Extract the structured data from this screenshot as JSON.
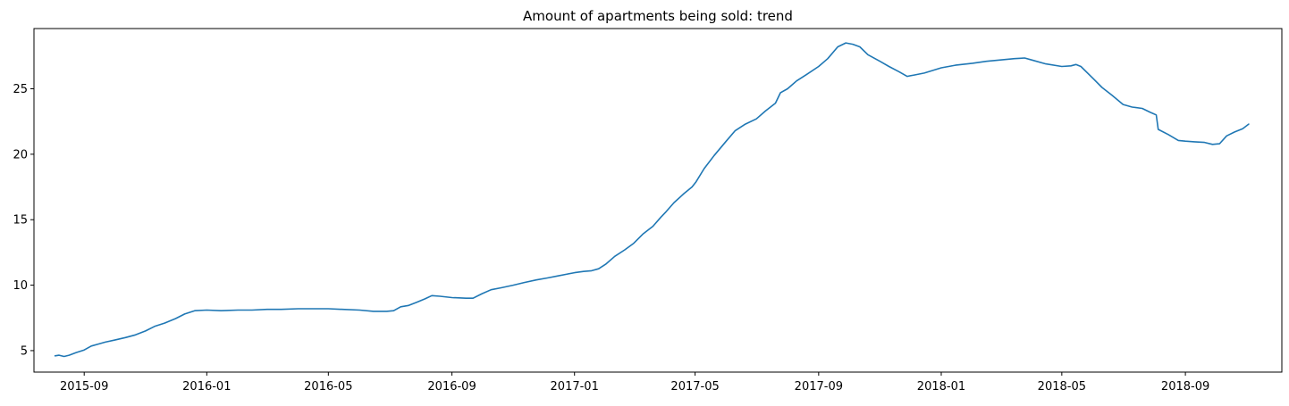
{
  "chart_data": {
    "type": "line",
    "title": "Amount of apartments being sold: trend",
    "xlabel": "",
    "ylabel": "",
    "grid": false,
    "legend": "none",
    "line_color": "#1f77b4",
    "xlim": [
      "2015-07-13",
      "2018-12-06"
    ],
    "ylim": [
      3.36,
      29.6
    ],
    "x_ticks": [
      "2015-09-01",
      "2016-01-01",
      "2016-05-01",
      "2016-09-01",
      "2017-01-01",
      "2017-05-01",
      "2017-09-01",
      "2018-01-01",
      "2018-05-01",
      "2018-09-01"
    ],
    "x_tick_labels": [
      "2015-09",
      "2016-01",
      "2016-05",
      "2016-09",
      "2017-01",
      "2017-05",
      "2017-09",
      "2018-01",
      "2018-05",
      "2018-09"
    ],
    "y_ticks": [
      5,
      10,
      15,
      20,
      25
    ],
    "y_tick_labels": [
      "5",
      "10",
      "15",
      "20",
      "25"
    ],
    "series": [
      {
        "x": [
          "2015-08-03",
          "2015-08-07",
          "2015-08-12",
          "2015-08-17",
          "2015-08-24",
          "2015-09-01",
          "2015-09-08",
          "2015-09-15",
          "2015-09-22",
          "2015-10-01",
          "2015-10-12",
          "2015-10-22",
          "2015-11-01",
          "2015-11-10",
          "2015-11-20",
          "2015-12-01",
          "2015-12-10",
          "2015-12-20",
          "2016-01-01",
          "2016-01-15",
          "2016-02-01",
          "2016-02-15",
          "2016-03-01",
          "2016-03-15",
          "2016-04-01",
          "2016-04-15",
          "2016-05-01",
          "2016-05-15",
          "2016-06-01",
          "2016-06-15",
          "2016-06-28",
          "2016-07-05",
          "2016-07-12",
          "2016-07-20",
          "2016-07-28",
          "2016-08-05",
          "2016-08-12",
          "2016-08-20",
          "2016-09-01",
          "2016-09-15",
          "2016-09-22",
          "2016-10-01",
          "2016-10-10",
          "2016-10-20",
          "2016-11-01",
          "2016-11-12",
          "2016-11-24",
          "2016-12-05",
          "2016-12-15",
          "2016-12-25",
          "2017-01-01",
          "2017-01-10",
          "2017-01-18",
          "2017-01-25",
          "2017-02-01",
          "2017-02-10",
          "2017-02-20",
          "2017-03-01",
          "2017-03-10",
          "2017-03-20",
          "2017-03-28",
          "2017-04-02",
          "2017-04-10",
          "2017-04-20",
          "2017-04-28",
          "2017-05-02",
          "2017-05-10",
          "2017-05-20",
          "2017-06-01",
          "2017-06-10",
          "2017-06-20",
          "2017-07-01",
          "2017-07-10",
          "2017-07-20",
          "2017-07-25",
          "2017-08-01",
          "2017-08-10",
          "2017-08-20",
          "2017-09-01",
          "2017-09-10",
          "2017-09-20",
          "2017-09-28",
          "2017-10-05",
          "2017-10-12",
          "2017-10-20",
          "2017-11-01",
          "2017-11-10",
          "2017-11-20",
          "2017-11-28",
          "2017-12-05",
          "2017-12-15",
          "2018-01-01",
          "2018-01-15",
          "2018-02-01",
          "2018-02-15",
          "2018-03-01",
          "2018-03-15",
          "2018-03-25",
          "2018-04-01",
          "2018-04-15",
          "2018-05-01",
          "2018-05-10",
          "2018-05-15",
          "2018-05-20",
          "2018-06-01",
          "2018-06-10",
          "2018-06-20",
          "2018-07-01",
          "2018-07-10",
          "2018-07-20",
          "2018-07-28",
          "2018-08-03",
          "2018-08-05",
          "2018-08-15",
          "2018-08-25",
          "2018-09-01",
          "2018-09-10",
          "2018-09-20",
          "2018-09-28",
          "2018-10-05",
          "2018-10-12",
          "2018-10-20",
          "2018-10-28",
          "2018-11-03"
        ],
        "y": [
          4.6,
          4.65,
          4.55,
          4.65,
          4.85,
          5.05,
          5.35,
          5.5,
          5.65,
          5.8,
          6.0,
          6.2,
          6.5,
          6.85,
          7.1,
          7.45,
          7.8,
          8.05,
          8.1,
          8.05,
          8.1,
          8.1,
          8.15,
          8.15,
          8.2,
          8.2,
          8.2,
          8.15,
          8.1,
          8.0,
          8.0,
          8.05,
          8.35,
          8.45,
          8.7,
          8.95,
          9.2,
          9.15,
          9.05,
          9.0,
          9.0,
          9.35,
          9.65,
          9.8,
          10.0,
          10.2,
          10.4,
          10.55,
          10.7,
          10.85,
          10.95,
          11.05,
          11.1,
          11.25,
          11.6,
          12.2,
          12.7,
          13.2,
          13.9,
          14.5,
          15.2,
          15.6,
          16.3,
          17.0,
          17.5,
          17.9,
          18.9,
          19.9,
          21.0,
          21.8,
          22.3,
          22.7,
          23.3,
          23.9,
          24.7,
          25.0,
          25.6,
          26.1,
          26.7,
          27.3,
          28.2,
          28.5,
          28.4,
          28.2,
          27.6,
          27.1,
          26.7,
          26.3,
          25.95,
          26.05,
          26.2,
          26.6,
          26.8,
          26.95,
          27.1,
          27.2,
          27.3,
          27.35,
          27.2,
          26.9,
          26.7,
          26.75,
          26.85,
          26.7,
          25.8,
          25.1,
          24.5,
          23.8,
          23.6,
          23.5,
          23.2,
          23.0,
          21.9,
          21.5,
          21.05,
          21.0,
          20.95,
          20.9,
          20.75,
          20.8,
          21.4,
          21.7,
          21.95,
          22.3
        ]
      }
    ]
  }
}
